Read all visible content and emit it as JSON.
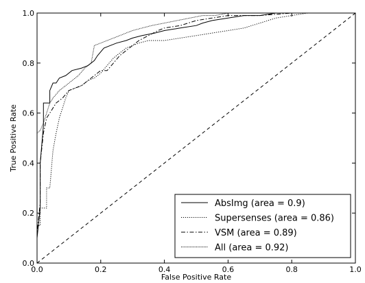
{
  "chart_data": {
    "type": "line",
    "xlabel": "False Positive Rate",
    "ylabel": "True Positive Rate",
    "xlim": [
      0.0,
      1.0
    ],
    "ylim": [
      0.0,
      1.0
    ],
    "xticks": [
      "0.0",
      "0.2",
      "0.4",
      "0.6",
      "0.8",
      "1.0"
    ],
    "yticks": [
      "0.0",
      "0.2",
      "0.4",
      "0.6",
      "0.8",
      "1.0"
    ],
    "grid": false,
    "legend_position": "bottom-right",
    "series": [
      {
        "name": "AbsImg (area = 0.9)",
        "style": "solid",
        "color": "#000000",
        "points": [
          [
            0,
            0
          ],
          [
            0,
            0.1
          ],
          [
            0.01,
            0.22
          ],
          [
            0.01,
            0.4
          ],
          [
            0.02,
            0.55
          ],
          [
            0.02,
            0.64
          ],
          [
            0.04,
            0.64
          ],
          [
            0.04,
            0.69
          ],
          [
            0.05,
            0.72
          ],
          [
            0.06,
            0.72
          ],
          [
            0.07,
            0.74
          ],
          [
            0.09,
            0.75
          ],
          [
            0.11,
            0.77
          ],
          [
            0.14,
            0.78
          ],
          [
            0.16,
            0.79
          ],
          [
            0.18,
            0.81
          ],
          [
            0.19,
            0.83
          ],
          [
            0.21,
            0.86
          ],
          [
            0.23,
            0.87
          ],
          [
            0.25,
            0.88
          ],
          [
            0.28,
            0.89
          ],
          [
            0.3,
            0.9
          ],
          [
            0.33,
            0.91
          ],
          [
            0.37,
            0.92
          ],
          [
            0.4,
            0.93
          ],
          [
            0.45,
            0.94
          ],
          [
            0.5,
            0.95
          ],
          [
            0.52,
            0.96
          ],
          [
            0.55,
            0.97
          ],
          [
            0.6,
            0.98
          ],
          [
            0.65,
            0.99
          ],
          [
            0.7,
            0.99
          ],
          [
            0.75,
            1.0
          ],
          [
            1.0,
            1.0
          ]
        ]
      },
      {
        "name": "Supersenses (area = 0.86)",
        "style": "dotted",
        "color": "#000000",
        "points": [
          [
            0,
            0
          ],
          [
            0,
            0.15
          ],
          [
            0.01,
            0.15
          ],
          [
            0.01,
            0.22
          ],
          [
            0.03,
            0.22
          ],
          [
            0.03,
            0.3
          ],
          [
            0.04,
            0.3
          ],
          [
            0.05,
            0.45
          ],
          [
            0.06,
            0.52
          ],
          [
            0.07,
            0.58
          ],
          [
            0.08,
            0.62
          ],
          [
            0.09,
            0.66
          ],
          [
            0.1,
            0.69
          ],
          [
            0.12,
            0.7
          ],
          [
            0.14,
            0.71
          ],
          [
            0.16,
            0.73
          ],
          [
            0.18,
            0.74
          ],
          [
            0.2,
            0.76
          ],
          [
            0.22,
            0.79
          ],
          [
            0.24,
            0.82
          ],
          [
            0.26,
            0.84
          ],
          [
            0.28,
            0.86
          ],
          [
            0.3,
            0.87
          ],
          [
            0.32,
            0.88
          ],
          [
            0.35,
            0.89
          ],
          [
            0.4,
            0.89
          ],
          [
            0.45,
            0.9
          ],
          [
            0.5,
            0.91
          ],
          [
            0.55,
            0.92
          ],
          [
            0.6,
            0.93
          ],
          [
            0.65,
            0.94
          ],
          [
            0.7,
            0.96
          ],
          [
            0.75,
            0.98
          ],
          [
            0.8,
            0.99
          ],
          [
            0.85,
            1.0
          ],
          [
            1.0,
            1.0
          ]
        ]
      },
      {
        "name": "VSM (area = 0.89)",
        "style": "dashdot",
        "color": "#000000",
        "points": [
          [
            0,
            0
          ],
          [
            0,
            0.12
          ],
          [
            0.01,
            0.24
          ],
          [
            0.01,
            0.4
          ],
          [
            0.02,
            0.52
          ],
          [
            0.03,
            0.58
          ],
          [
            0.04,
            0.6
          ],
          [
            0.05,
            0.62
          ],
          [
            0.06,
            0.64
          ],
          [
            0.08,
            0.66
          ],
          [
            0.1,
            0.69
          ],
          [
            0.12,
            0.7
          ],
          [
            0.14,
            0.71
          ],
          [
            0.16,
            0.73
          ],
          [
            0.18,
            0.75
          ],
          [
            0.2,
            0.77
          ],
          [
            0.22,
            0.77
          ],
          [
            0.24,
            0.8
          ],
          [
            0.26,
            0.83
          ],
          [
            0.28,
            0.85
          ],
          [
            0.3,
            0.87
          ],
          [
            0.32,
            0.89
          ],
          [
            0.35,
            0.91
          ],
          [
            0.38,
            0.93
          ],
          [
            0.4,
            0.94
          ],
          [
            0.45,
            0.95
          ],
          [
            0.5,
            0.97
          ],
          [
            0.55,
            0.98
          ],
          [
            0.6,
            0.99
          ],
          [
            0.7,
            0.99
          ],
          [
            0.8,
            1.0
          ],
          [
            1.0,
            1.0
          ]
        ]
      },
      {
        "name": "All (area = 0.92)",
        "style": "densedot",
        "color": "#000000",
        "points": [
          [
            0,
            0
          ],
          [
            0,
            0.52
          ],
          [
            0.01,
            0.53
          ],
          [
            0.02,
            0.56
          ],
          [
            0.03,
            0.6
          ],
          [
            0.04,
            0.64
          ],
          [
            0.05,
            0.66
          ],
          [
            0.07,
            0.69
          ],
          [
            0.09,
            0.71
          ],
          [
            0.11,
            0.73
          ],
          [
            0.13,
            0.75
          ],
          [
            0.15,
            0.78
          ],
          [
            0.17,
            0.8
          ],
          [
            0.18,
            0.87
          ],
          [
            0.2,
            0.88
          ],
          [
            0.22,
            0.89
          ],
          [
            0.24,
            0.9
          ],
          [
            0.26,
            0.91
          ],
          [
            0.28,
            0.92
          ],
          [
            0.3,
            0.93
          ],
          [
            0.33,
            0.94
          ],
          [
            0.36,
            0.95
          ],
          [
            0.4,
            0.96
          ],
          [
            0.44,
            0.97
          ],
          [
            0.48,
            0.98
          ],
          [
            0.52,
            0.99
          ],
          [
            0.56,
            0.99
          ],
          [
            0.6,
            1.0
          ],
          [
            1.0,
            1.0
          ]
        ]
      },
      {
        "name": "",
        "style": "dashed",
        "color": "#000000",
        "points": [
          [
            0,
            0
          ],
          [
            1,
            1
          ]
        ]
      }
    ]
  }
}
